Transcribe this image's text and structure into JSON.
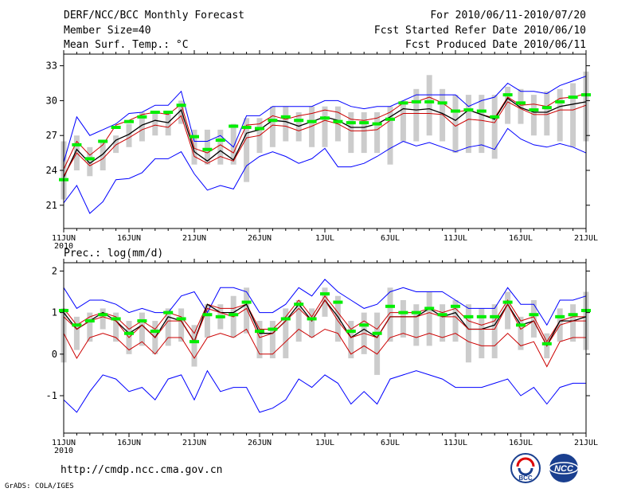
{
  "header": {
    "title": "DERF/NCC/BCC Monthly Forecast",
    "member": "Member Size=40",
    "variable": "Mean Surf. Temp.: °C",
    "period": "For 2010/06/11-2010/07/20",
    "started": "Fcst Started Refer Date 2010/06/10",
    "produced": "Fcst Produced Date 2010/06/11"
  },
  "panel2_label": "Prec.: log(mm/d)",
  "footer": {
    "url": "http://cmdp.ncc.cma.gov.cn",
    "grads": "GrADS: COLA/IGES"
  },
  "logos": {
    "bcc": "BCC",
    "ncc": "NCC"
  },
  "colors": {
    "max_min": "#0000ff",
    "spread": "#cc0000",
    "mean": "#000000",
    "median": "#00ee00",
    "box": "#cccccc"
  },
  "chart_data": [
    {
      "type": "line",
      "title": "Mean Surf. Temp.: °C",
      "x_tick_labels": [
        "11JUN",
        "16JUN",
        "21JUN",
        "26JUN",
        "1JUL",
        "6JUL",
        "11JUL",
        "16JUL",
        "21JUL"
      ],
      "x_year_label": "2010",
      "x_range": [
        0,
        40
      ],
      "y_ticks": [
        21,
        24,
        27,
        30,
        33
      ],
      "y_range": [
        19,
        34
      ],
      "series": [
        {
          "name": "max",
          "values": [
            24.7,
            28.6,
            27.0,
            27.5,
            28.0,
            28.9,
            29.0,
            29.6,
            29.6,
            30.8,
            26.5,
            26.5,
            27.0,
            26.0,
            28.7,
            28.7,
            29.5,
            29.5,
            29.5,
            29.5,
            30.0,
            30.0,
            29.5,
            29.3,
            29.5,
            29.5,
            30.0,
            30.5,
            30.5,
            30.5,
            30.5,
            29.5,
            30.0,
            30.3,
            31.5,
            30.8,
            30.8,
            30.6,
            31.3,
            31.7,
            32.1
          ]
        },
        {
          "name": "upper",
          "values": [
            24.1,
            26.5,
            25.3,
            26.2,
            27.9,
            28.3,
            28.8,
            29.0,
            28.8,
            29.7,
            25.9,
            25.5,
            26.2,
            25.5,
            27.9,
            28.0,
            28.7,
            28.4,
            28.7,
            28.9,
            29.2,
            29.0,
            28.4,
            28.3,
            28.5,
            29.0,
            29.8,
            29.9,
            30.3,
            29.8,
            29.0,
            29.2,
            28.8,
            28.5,
            30.3,
            29.6,
            29.7,
            29.5,
            30.2,
            30.3,
            30.6
          ]
        },
        {
          "name": "mean",
          "values": [
            23.4,
            25.8,
            24.6,
            25.4,
            26.6,
            27.1,
            27.9,
            28.3,
            28.1,
            29.2,
            25.6,
            24.8,
            25.7,
            24.9,
            27.2,
            27.5,
            28.3,
            28.2,
            27.8,
            28.2,
            28.6,
            28.3,
            27.7,
            27.7,
            28.0,
            28.6,
            29.3,
            29.2,
            29.3,
            28.9,
            28.3,
            29.2,
            28.8,
            28.4,
            30.2,
            29.4,
            29.0,
            29.0,
            29.5,
            29.7,
            29.9
          ]
        },
        {
          "name": "median",
          "values": [
            23.2,
            26.2,
            25.0,
            26.5,
            27.7,
            28.2,
            28.6,
            29.0,
            29.0,
            29.6,
            26.9,
            25.8,
            26.6,
            27.8,
            27.7,
            27.6,
            28.3,
            28.6,
            28.3,
            28.2,
            28.5,
            28.2,
            28.1,
            28.1,
            28.0,
            28.4,
            29.8,
            29.9,
            29.9,
            29.8,
            29.1,
            29.2,
            29.1,
            28.6,
            30.5,
            29.8,
            29.2,
            29.4,
            29.9,
            30.3,
            30.5
          ]
        },
        {
          "name": "lower",
          "values": [
            23.5,
            25.5,
            24.4,
            25.0,
            26.2,
            26.8,
            27.5,
            27.9,
            27.7,
            28.7,
            25.2,
            24.6,
            25.2,
            24.8,
            26.8,
            27.0,
            27.9,
            27.8,
            27.4,
            27.8,
            28.3,
            28.0,
            27.4,
            27.4,
            27.5,
            28.3,
            28.9,
            28.9,
            28.9,
            28.8,
            27.8,
            28.4,
            28.3,
            28.1,
            29.9,
            29.3,
            28.8,
            28.8,
            29.2,
            29.2,
            29.6
          ]
        },
        {
          "name": "min",
          "values": [
            21.2,
            22.7,
            20.3,
            21.3,
            23.2,
            23.3,
            23.8,
            25.0,
            25.0,
            25.6,
            23.7,
            22.3,
            22.7,
            22.4,
            24.4,
            25.2,
            25.6,
            25.2,
            24.6,
            25.0,
            25.9,
            24.3,
            24.3,
            24.6,
            25.2,
            25.9,
            26.5,
            26.1,
            26.4,
            26.0,
            25.6,
            26.0,
            26.2,
            25.8,
            27.6,
            26.7,
            26.2,
            26.0,
            26.3,
            26.0,
            25.5
          ]
        }
      ],
      "box_range_low": [
        21.5,
        24.0,
        23.5,
        24.0,
        25.5,
        26.0,
        26.5,
        27.0,
        27.0,
        28.0,
        24.5,
        24.5,
        24.5,
        24.5,
        23.0,
        25.5,
        26.0,
        26.5,
        26.5,
        26.0,
        26.0,
        26.5,
        25.5,
        25.5,
        25.5,
        24.5,
        26.5,
        26.5,
        27.0,
        26.5,
        25.5,
        25.5,
        25.5,
        25.0,
        28.0,
        28.0,
        27.0,
        27.0,
        26.5,
        26.0,
        26.5
      ],
      "box_range_high": [
        26.5,
        27.0,
        26.0,
        26.5,
        27.0,
        28.0,
        29.0,
        29.0,
        29.0,
        30.0,
        27.5,
        27.5,
        27.5,
        28.0,
        28.5,
        28.5,
        29.5,
        29.5,
        29.0,
        29.5,
        29.5,
        29.5,
        29.0,
        29.0,
        29.0,
        29.5,
        30.0,
        31.0,
        32.2,
        31.0,
        30.5,
        30.5,
        30.5,
        30.5,
        31.2,
        31.0,
        30.5,
        30.8,
        31.0,
        31.5,
        32.5
      ]
    },
    {
      "type": "line",
      "title": "Prec.: log(mm/d)",
      "x_tick_labels": [
        "11JUN",
        "16JUN",
        "21JUN",
        "26JUN",
        "1JUL",
        "6JUL",
        "11JUL",
        "16JUL",
        "21JUL"
      ],
      "x_year_label": "2010",
      "x_range": [
        0,
        40
      ],
      "y_ticks": [
        -1,
        0,
        1,
        2
      ],
      "y_range": [
        -1.9,
        2.2
      ],
      "series": [
        {
          "name": "max",
          "values": [
            1.6,
            1.1,
            1.3,
            1.3,
            1.2,
            1.0,
            1.1,
            1.0,
            1.0,
            1.4,
            1.5,
            1.0,
            1.6,
            1.6,
            1.5,
            1.0,
            1.0,
            1.2,
            1.6,
            1.4,
            1.8,
            1.5,
            1.3,
            1.1,
            1.2,
            1.5,
            1.6,
            1.5,
            1.5,
            1.5,
            1.3,
            1.1,
            1.1,
            1.1,
            1.6,
            1.2,
            1.2,
            0.7,
            1.3,
            1.3,
            1.4
          ]
        },
        {
          "name": "upper",
          "values": [
            1.1,
            0.7,
            0.9,
            1.0,
            0.9,
            0.6,
            0.8,
            0.6,
            1.0,
            0.9,
            0.5,
            1.2,
            1.1,
            1.1,
            1.2,
            0.6,
            0.6,
            0.9,
            1.3,
            0.9,
            1.4,
            1.0,
            0.6,
            0.8,
            0.6,
            1.0,
            1.0,
            1.0,
            1.1,
            1.0,
            1.1,
            0.8,
            0.7,
            0.8,
            1.3,
            0.8,
            0.9,
            0.3,
            0.8,
            0.9,
            0.9
          ]
        },
        {
          "name": "mean",
          "values": [
            1.0,
            0.6,
            0.8,
            1.0,
            0.8,
            0.5,
            0.7,
            0.4,
            0.9,
            0.8,
            0.3,
            1.2,
            1.0,
            1.0,
            1.2,
            0.5,
            0.5,
            0.8,
            1.2,
            0.8,
            1.3,
            0.9,
            0.4,
            0.6,
            0.4,
            0.9,
            0.9,
            0.9,
            1.1,
            0.9,
            1.0,
            0.6,
            0.6,
            0.7,
            1.2,
            0.7,
            0.8,
            0.2,
            0.8,
            0.8,
            0.9
          ]
        },
        {
          "name": "median",
          "values": [
            1.05,
            0.65,
            0.8,
            1.0,
            0.85,
            0.45,
            0.75,
            0.5,
            1.0,
            0.85,
            0.25,
            0.9,
            0.85,
            0.9,
            1.25,
            0.55,
            0.6,
            0.85,
            1.2,
            0.85,
            1.4,
            1.2,
            0.55,
            0.7,
            0.5,
            1.1,
            1.0,
            0.95,
            1.1,
            0.95,
            1.15,
            0.9,
            0.85,
            0.85,
            1.25,
            0.65,
            0.95,
            0.25,
            0.9,
            0.95,
            1.0
          ]
        },
        {
          "name": "lower",
          "values": [
            0.9,
            0.6,
            0.8,
            0.9,
            0.8,
            0.4,
            0.7,
            0.4,
            0.8,
            0.8,
            0.3,
            1.1,
            1.0,
            0.9,
            1.1,
            0.4,
            0.5,
            0.8,
            1.1,
            0.8,
            1.3,
            0.8,
            0.4,
            0.5,
            0.4,
            0.9,
            0.9,
            0.9,
            1.0,
            0.9,
            0.9,
            0.6,
            0.6,
            0.6,
            1.2,
            0.6,
            0.8,
            0.2,
            0.7,
            0.8,
            0.8
          ]
        },
        {
          "name": "min_upper_red",
          "values": [
            0.5,
            -0.1,
            0.4,
            0.5,
            0.4,
            0.1,
            0.3,
            0.0,
            0.4,
            0.4,
            -0.1,
            0.4,
            0.5,
            0.4,
            0.6,
            0.0,
            0.0,
            0.3,
            0.6,
            0.4,
            0.6,
            0.5,
            0.0,
            0.2,
            0.0,
            0.4,
            0.5,
            0.4,
            0.5,
            0.4,
            0.5,
            0.3,
            0.2,
            0.2,
            0.5,
            0.2,
            0.3,
            -0.3,
            0.3,
            0.4,
            0.4
          ]
        },
        {
          "name": "min",
          "values": [
            -1.1,
            -1.4,
            -0.9,
            -0.5,
            -0.6,
            -0.9,
            -0.8,
            -1.1,
            -0.6,
            -0.5,
            -1.1,
            -0.4,
            -0.9,
            -0.8,
            -0.8,
            -1.4,
            -1.3,
            -1.1,
            -0.6,
            -0.8,
            -0.5,
            -0.7,
            -1.2,
            -0.9,
            -1.2,
            -0.6,
            -0.5,
            -0.4,
            -0.5,
            -0.6,
            -0.8,
            -0.8,
            -0.8,
            -0.7,
            -0.6,
            -1.0,
            -0.8,
            -1.2,
            -0.8,
            -0.7,
            -0.7
          ]
        },
        {
          "name": "median_marker",
          "values": [
            1.05,
            0.7,
            0.8,
            0.95,
            0.85,
            0.5,
            0.8,
            0.55,
            1.0,
            0.85,
            0.3,
            0.95,
            0.9,
            0.95,
            1.25,
            0.55,
            0.6,
            0.85,
            1.2,
            0.85,
            1.45,
            1.25,
            0.55,
            0.7,
            0.5,
            1.15,
            1.0,
            1.0,
            1.1,
            0.95,
            1.15,
            0.9,
            0.9,
            0.9,
            1.25,
            0.7,
            0.95,
            0.25,
            0.9,
            0.95,
            1.05
          ]
        }
      ],
      "box_range_low": [
        -0.2,
        0.1,
        0.3,
        0.6,
        0.3,
        0.0,
        0.2,
        0.0,
        0.2,
        0.3,
        -0.3,
        0.4,
        0.6,
        0.4,
        0.5,
        -0.1,
        -0.1,
        -0.1,
        0.3,
        0.4,
        0.9,
        0.3,
        -0.1,
        0.0,
        -0.5,
        0.3,
        0.4,
        0.2,
        0.2,
        0.3,
        0.3,
        -0.2,
        -0.1,
        -0.1,
        0.6,
        0.1,
        0.4,
        -0.1,
        0.3,
        0.3,
        0.1
      ],
      "box_range_high": [
        1.1,
        0.9,
        1.0,
        1.1,
        1.0,
        0.8,
        1.0,
        0.8,
        1.1,
        1.1,
        0.7,
        1.2,
        1.2,
        1.4,
        1.6,
        0.8,
        0.8,
        1.1,
        1.3,
        1.1,
        1.6,
        1.4,
        0.8,
        1.0,
        1.0,
        1.6,
        1.3,
        1.2,
        1.5,
        1.2,
        1.3,
        1.2,
        1.1,
        1.2,
        1.5,
        0.9,
        1.3,
        0.5,
        1.1,
        1.2,
        1.5
      ]
    }
  ]
}
